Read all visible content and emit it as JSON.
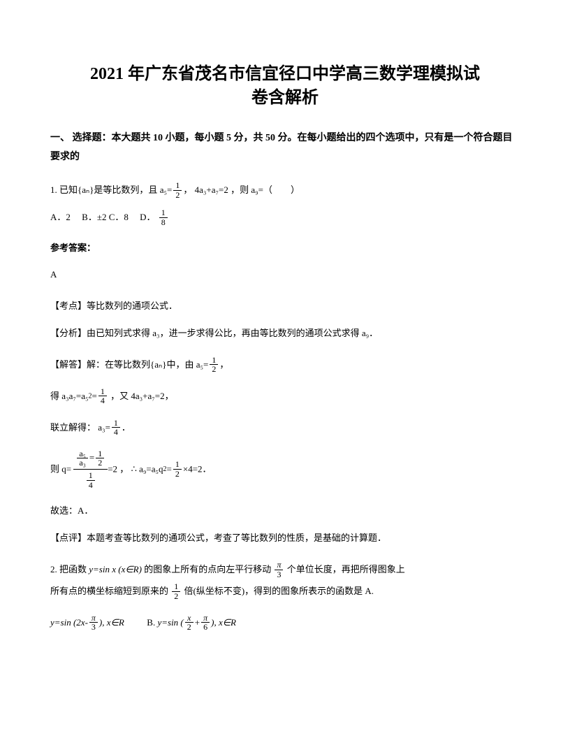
{
  "title_line1": "2021 年广东省茂名市信宜径口中学高三数学理模拟试",
  "title_line2": "卷含解析",
  "section1": "一、 选择题：本大题共 10 小题，每小题 5 分，共 50 分。在每小题给出的四个选项中，只有是一个符合题目要求的",
  "q1": {
    "stem_a": "1. 已知{aₙ}是等比数列，且 ",
    "a5_num": "1",
    "a5_den": "2",
    "cond2": "4a₃+a₇=2",
    "stem_b": "，则 a₉=（　　）",
    "optA": "A．2",
    "optB": "B．±2",
    "optC": "C．8",
    "optD": "D．",
    "d_num": "1",
    "d_den": "8",
    "ansLabel": "参考答案：",
    "ans": "A",
    "kd_label": "【考点】",
    "kd": "等比数列的通项公式．",
    "fx_label": "【分析】",
    "fx": "由已知列式求得 a₃，进一步求得公比，再由等比数列的通项公式求得 a₉．",
    "jd_label": "【解答】",
    "jd1_a": "解：在等比数列{aₙ}中，由 ",
    "jd1_b": "，",
    "jd2_a": "得 ",
    "a3a7_lhs": "a₃a₇=a₅",
    "a3a7_sup": "2",
    "eq": "=",
    "one": "1",
    "four": "4",
    "jd2_b": "，又 4a₃+a₇=2，",
    "jd3_a": "联立解得：",
    "a3eq": "a₃=",
    "jd3_b": "．",
    "jd4_a": "则 q=",
    "jd4_b": "，",
    "therefore": "∴ ",
    "a9expr": "a₉=a₅q",
    "sq2": "2",
    "half": "1",
    "half_d": "2",
    "times4": "×4=2",
    "jd4_c": "．",
    "gx": "故选：A．",
    "dp_label": "【点评】",
    "dp": "本题考查等比数列的通项公式，考查了等比数列的性质，是基础的计算题．"
  },
  "q2": {
    "stem_a": "2. 把函数",
    "fx_expr": "y=sin x (x∈R)",
    "stem_b": "的图象上所有的点向左平行移动 ",
    "pi": "π",
    "three": "3",
    "stem_c": " 个单位长度，再把所得图象上",
    "stem2_a": "所有点的横坐标缩短到原来的 ",
    "one": "1",
    "two": "2",
    "stem2_b": " 倍(纵坐标不变)，得到的图象所表示的函数是  A.",
    "optA_expr": "y=sin (2x-",
    "optA_end": "), x∈R",
    "optB_label": "B.",
    "optB_expr1": "y=sin (",
    "optB_x2": "x",
    "optB_2": "2",
    "optB_plus": "+",
    "optB_pi": "π",
    "optB_6": "6",
    "optB_end": "), x∈R"
  }
}
